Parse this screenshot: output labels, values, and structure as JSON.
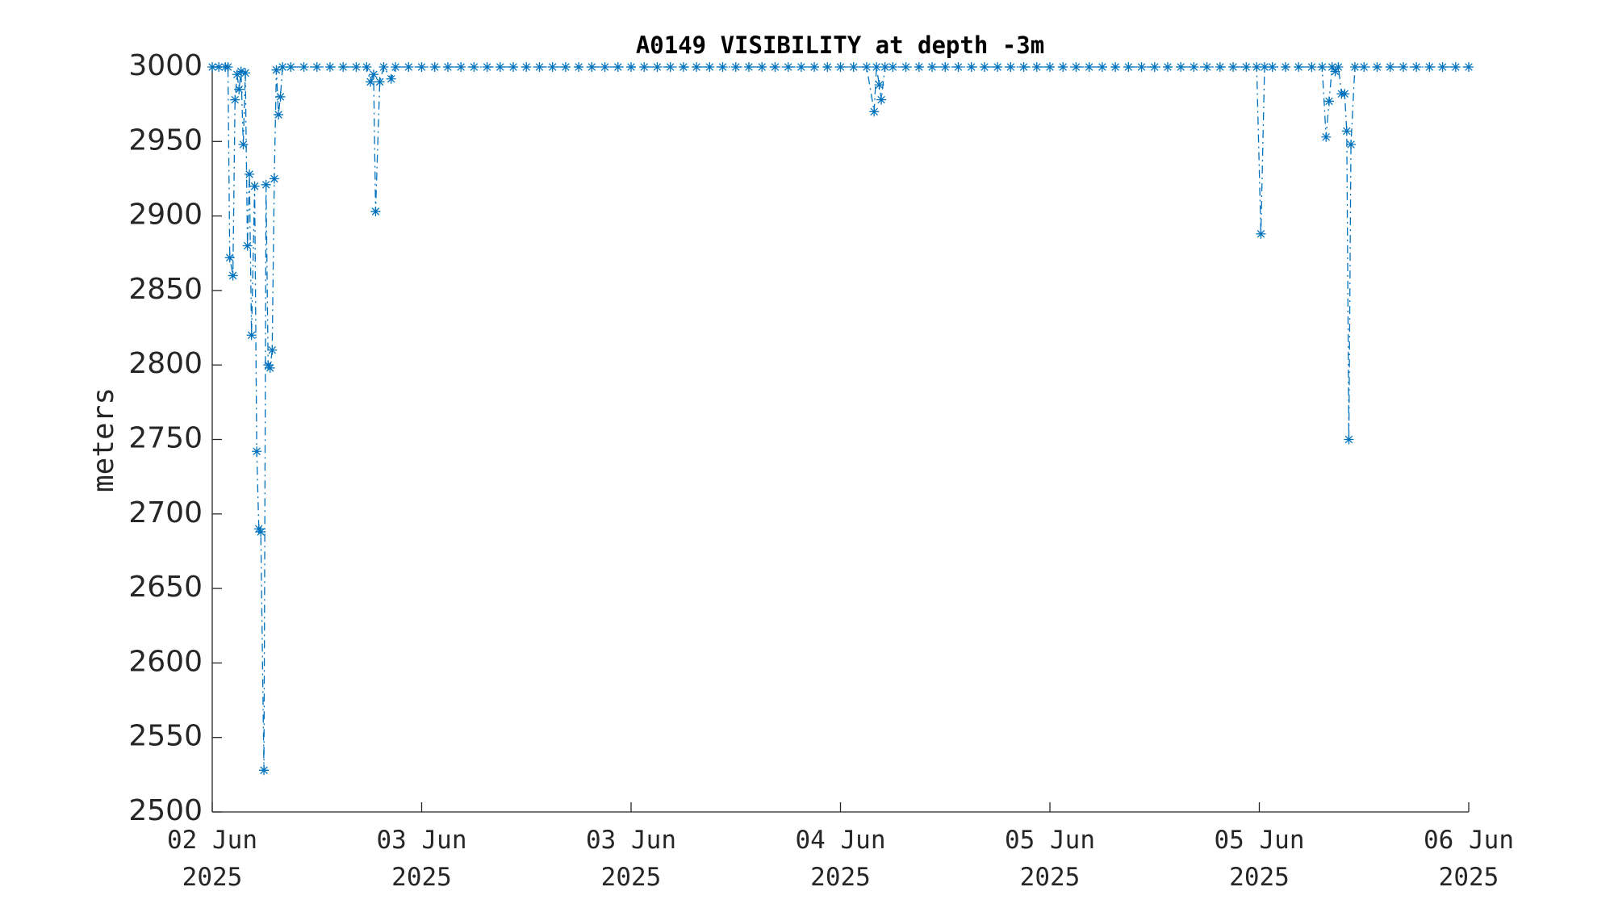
{
  "chart_data": {
    "type": "line",
    "title": "A0149 VISIBILITY at depth -3m",
    "ylabel": "meters",
    "x": [
      0,
      0.5,
      1,
      1.2,
      1.34,
      1.58,
      1.74,
      1.9,
      2.05,
      2.2,
      2.37,
      2.53,
      2.69,
      2.84,
      3.0,
      3.24,
      3.4,
      3.56,
      3.71,
      3.95,
      4.11,
      4.27,
      4.42,
      4.58,
      4.74,
      4.9,
      5.06,
      5.21,
      5.37,
      6,
      7,
      8,
      9,
      10,
      11,
      11.8,
      12.09,
      12.33,
      12.48,
      12.8,
      13.1,
      13.67,
      14,
      15,
      16,
      17,
      18,
      19,
      20,
      21,
      22,
      23,
      24,
      25,
      26,
      27,
      28,
      29,
      30,
      31,
      32,
      33,
      34,
      35,
      36,
      37,
      38,
      39,
      40,
      41,
      42,
      43,
      44,
      45,
      46,
      47,
      48,
      49,
      50,
      50.57,
      50.75,
      50.96,
      51.12,
      51.4,
      52,
      53,
      54,
      55,
      56,
      57,
      58,
      59,
      60,
      61,
      62,
      63,
      64,
      65,
      66,
      67,
      68,
      69,
      70,
      71,
      72,
      73,
      74,
      75,
      76,
      77,
      78,
      79,
      79.8,
      80.12,
      80.4,
      81,
      82,
      83,
      84,
      84.8,
      85.1,
      85.33,
      85.56,
      85.8,
      86.04,
      86.28,
      86.52,
      86.68,
      86.84,
      87.0,
      87.3,
      88,
      89,
      90,
      91,
      92,
      93,
      94,
      95,
      96
    ],
    "series": [
      {
        "color": "#0072bd",
        "values": [
          3000,
          3000,
          3000,
          3000,
          2872,
          2860,
          2978,
          2995,
          2985,
          2997,
          2948,
          2996,
          2880,
          2928,
          2820,
          2920,
          2742,
          2690,
          2688,
          2528,
          2921,
          2800,
          2798,
          2810,
          2925,
          2998,
          2968,
          2980,
          3000,
          3000,
          3000,
          3000,
          3000,
          3000,
          3000,
          3000,
          2990,
          2995,
          2903,
          2990,
          3000,
          2992,
          3000,
          3000,
          3000,
          3000,
          3000,
          3000,
          3000,
          3000,
          3000,
          3000,
          3000,
          3000,
          3000,
          3000,
          3000,
          3000,
          3000,
          3000,
          3000,
          3000,
          3000,
          3000,
          3000,
          3000,
          3000,
          3000,
          3000,
          3000,
          3000,
          3000,
          3000,
          3000,
          3000,
          3000,
          3000,
          3000,
          3000,
          2970,
          3000,
          2988,
          2978,
          3000,
          3000,
          3000,
          3000,
          3000,
          3000,
          3000,
          3000,
          3000,
          3000,
          3000,
          3000,
          3000,
          3000,
          3000,
          3000,
          3000,
          3000,
          3000,
          3000,
          3000,
          3000,
          3000,
          3000,
          3000,
          3000,
          3000,
          3000,
          3000,
          3000,
          2888,
          3000,
          3000,
          3000,
          3000,
          3000,
          3000,
          2953,
          2977,
          3000,
          2997,
          3000,
          2982,
          2982,
          2957,
          2750,
          2948,
          3000,
          3000,
          3000,
          3000,
          3000,
          3000,
          3000,
          3000,
          3000,
          3000
        ]
      }
    ],
    "xlim": [
      0,
      96
    ],
    "xticks": [
      {
        "value": 0,
        "label": "02 Jun 2025"
      },
      {
        "value": 16,
        "label": "03 Jun 2025"
      },
      {
        "value": 32,
        "label": "03 Jun 2025"
      },
      {
        "value": 48,
        "label": "04 Jun 2025"
      },
      {
        "value": 64,
        "label": "05 Jun 2025"
      },
      {
        "value": 80,
        "label": "05 Jun 2025"
      },
      {
        "value": 96,
        "label": "06 Jun 2025"
      }
    ],
    "ylim": [
      2500,
      3000
    ],
    "yticks": [
      2500,
      2550,
      2600,
      2650,
      2700,
      2750,
      2800,
      2850,
      2900,
      2950,
      3000
    ],
    "grid": false,
    "marker": "asterisk"
  }
}
